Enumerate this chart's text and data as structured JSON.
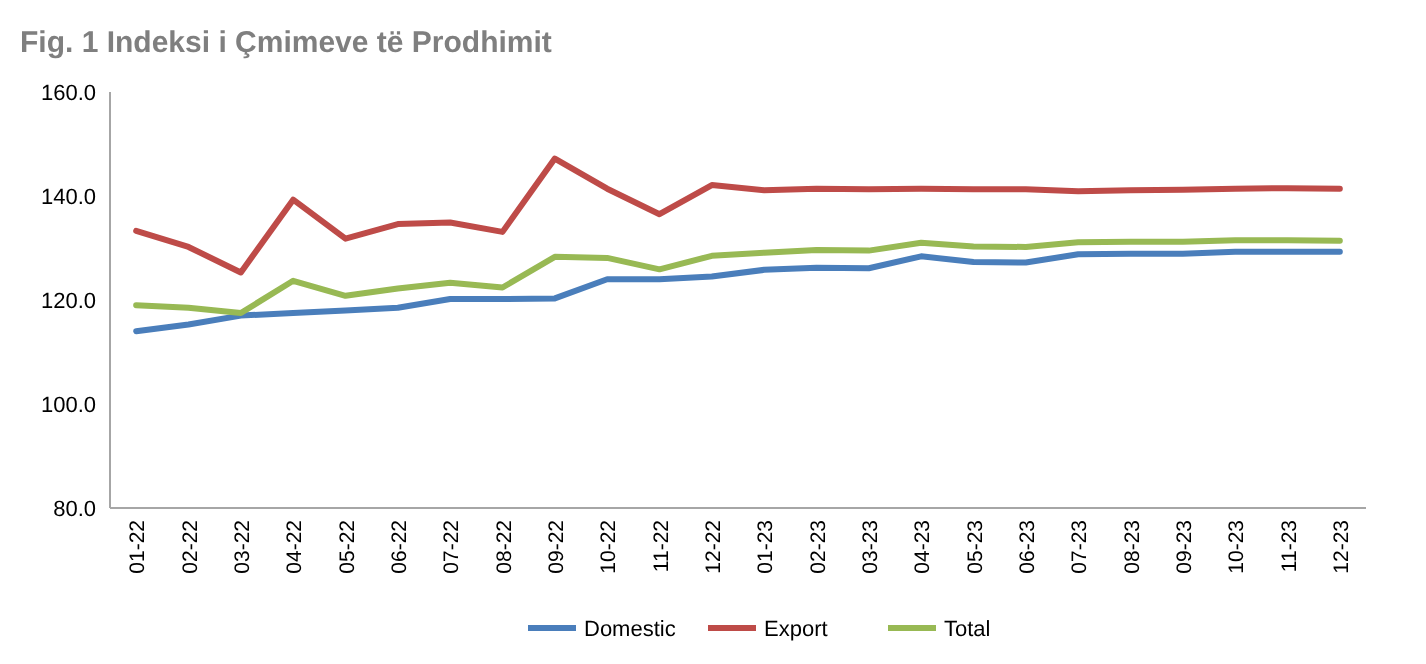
{
  "chart_data": {
    "type": "line",
    "title": "Fig. 1 Indeksi i Çmimeve të Prodhimit",
    "categories": [
      "01-22",
      "02-22",
      "03-22",
      "04-22",
      "05-22",
      "06-22",
      "07-22",
      "08-22",
      "09-22",
      "10-22",
      "11-22",
      "12-22",
      "01-23",
      "02-23",
      "03-23",
      "04-23",
      "05-23",
      "06-23",
      "07-23",
      "08-23",
      "09-23",
      "10-23",
      "11-23",
      "12-23"
    ],
    "series": [
      {
        "name": "Domestic",
        "color": "#4a7ebb",
        "values": [
          114,
          115.3,
          117,
          117.5,
          118,
          118.5,
          120.2,
          120.2,
          120.3,
          124,
          124,
          124.5,
          125.8,
          126.2,
          126.1,
          128.4,
          127.3,
          127.2,
          128.8,
          128.9,
          128.9,
          129.3,
          129.3,
          129.3
        ]
      },
      {
        "name": "Export",
        "color": "#be4b48",
        "values": [
          133.3,
          130.2,
          125.3,
          139.3,
          131.8,
          134.6,
          134.9,
          133.1,
          147.2,
          141.4,
          136.5,
          142.1,
          141.1,
          141.4,
          141.3,
          141.4,
          141.3,
          141.3,
          140.9,
          141.1,
          141.2,
          141.4,
          141.5,
          141.4
        ]
      },
      {
        "name": "Total",
        "color": "#98b954",
        "values": [
          119,
          118.5,
          117.5,
          123.7,
          120.8,
          122.2,
          123.3,
          122.4,
          128.3,
          128.1,
          125.9,
          128.5,
          129.1,
          129.6,
          129.5,
          131,
          130.3,
          130.2,
          131.1,
          131.2,
          131.2,
          131.5,
          131.5,
          131.4
        ]
      }
    ],
    "ylim": [
      80,
      160
    ],
    "yticks": [
      {
        "value": 80,
        "label": "80.0"
      },
      {
        "value": 100,
        "label": "100.0"
      },
      {
        "value": 120,
        "label": "120.0"
      },
      {
        "value": 140,
        "label": "140.0"
      },
      {
        "value": 160,
        "label": "160.0"
      }
    ],
    "grid": false,
    "legend": "bottom",
    "marker": "none",
    "line_style": "solid"
  }
}
